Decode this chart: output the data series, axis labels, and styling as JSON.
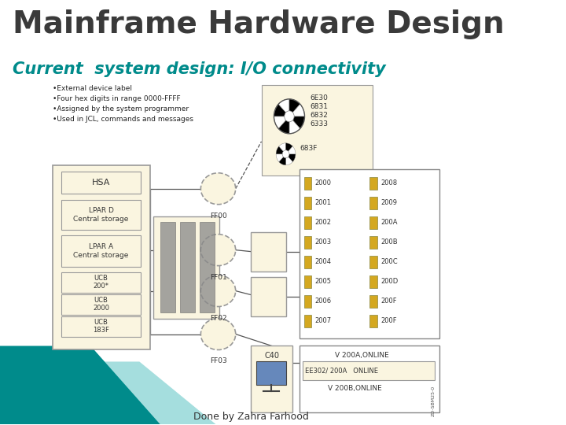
{
  "title": "Mainframe Hardware Design",
  "subtitle": "Current  system design: I/O connectivity",
  "attribution": "Done by Zahra Farhood",
  "title_fontsize": 28,
  "subtitle_fontsize": 15,
  "attribution_fontsize": 9,
  "title_color": "#3a3a3a",
  "subtitle_color": "#008B8B",
  "attribution_color": "#333333",
  "background_color": "#ffffff",
  "teal_strip_color": "#008B8B",
  "light_teal_color": "#7fd0d0",
  "diagram_bg": "#faf5e0",
  "bullet_points": [
    "•External device label",
    "•Four hex digits in range 0000-FFFF",
    "•Assigned by the system programmer",
    "•Used in JCL, commands and messages"
  ],
  "bullet_fontsize": 6.5,
  "bullet_color": "#222222",
  "io_devices_left": [
    "2000",
    "2001",
    "2002",
    "2003",
    "2004",
    "2005",
    "2006",
    "2007"
  ],
  "io_devices_right": [
    "2008",
    "2009",
    "200A",
    "200B",
    "200C",
    "200D",
    "200F",
    "200F"
  ],
  "online_text1": "V 200A,ONLINE",
  "online_text2": "V 200B,ONLINE",
  "ee_text": "EE302/ 200A   ONLINE",
  "c40_text": "C40",
  "tape_labels": [
    "6E30",
    "6831",
    "6832",
    "6333"
  ],
  "tape2_label": "683F",
  "ff_items": [
    "FF00",
    "FF01",
    "FF02",
    "FF03"
  ]
}
